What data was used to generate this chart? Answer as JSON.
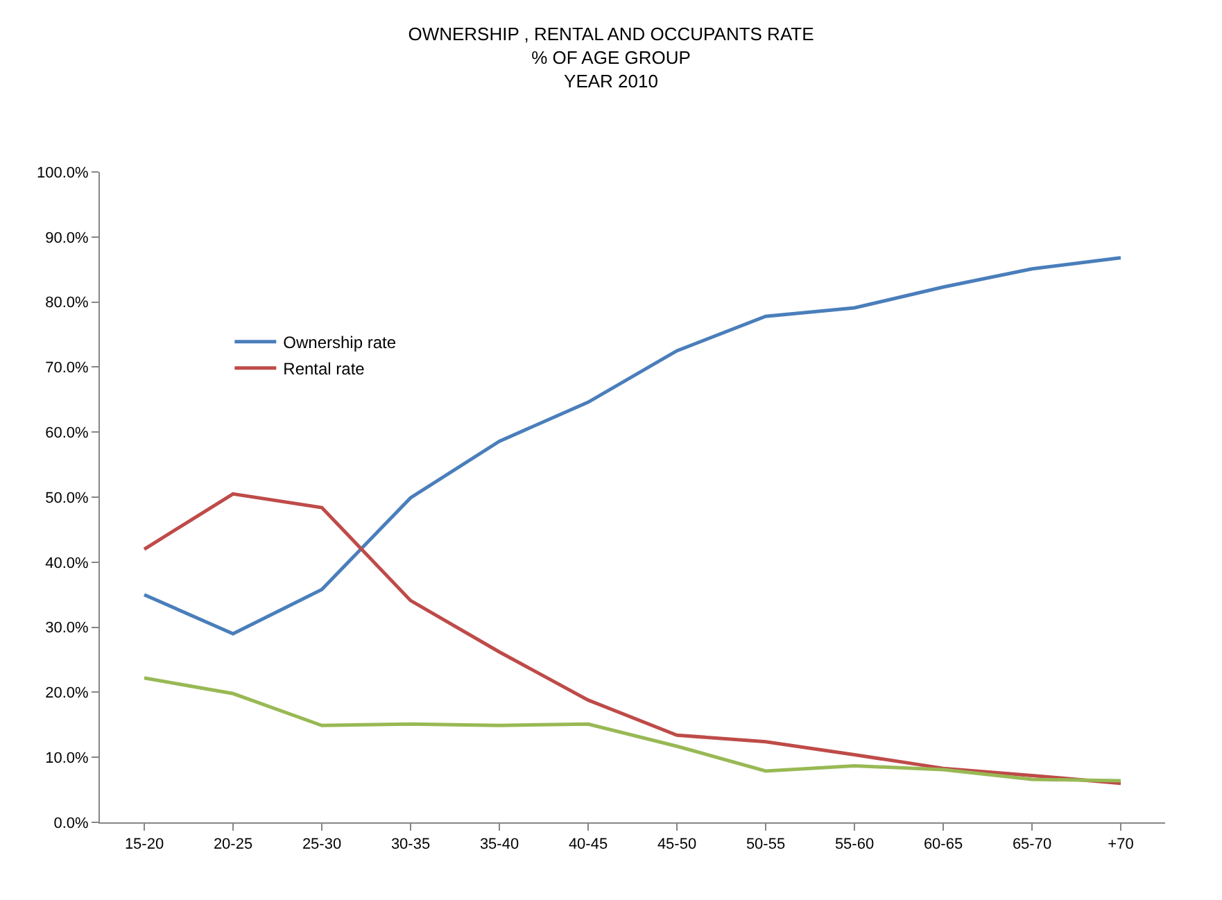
{
  "chart_data": {
    "type": "line",
    "title": "OWNERSHIP , RENTAL AND OCCUPANTS RATE\n% OF AGE GROUP\nYEAR 2010",
    "categories": [
      "15-20",
      "20-25",
      "25-30",
      "30-35",
      "35-40",
      "40-45",
      "45-50",
      "50-55",
      "55-60",
      "60-65",
      "65-70",
      "+70"
    ],
    "series": [
      {
        "name": "Ownership rate",
        "color": "#4a7ebb",
        "values": [
          35.0,
          29.0,
          35.8,
          49.9,
          58.6,
          64.6,
          72.5,
          77.8,
          79.1,
          82.3,
          85.1,
          86.8
        ]
      },
      {
        "name": "Rental rate",
        "color": "#be4b48",
        "values": [
          42.0,
          50.5,
          48.4,
          34.1,
          26.2,
          18.8,
          13.4,
          12.4,
          10.4,
          8.3,
          7.2,
          6.0
        ]
      },
      {
        "color": "#98b954",
        "values": [
          22.2,
          19.8,
          14.9,
          15.1,
          14.9,
          15.1,
          11.7,
          7.9,
          8.7,
          8.1,
          6.6,
          6.4
        ]
      }
    ],
    "ylim": [
      0,
      100
    ],
    "yticks": [
      {
        "value": 0,
        "label": "0.0%"
      },
      {
        "value": 10,
        "label": "10.0%"
      },
      {
        "value": 20,
        "label": "20.0%"
      },
      {
        "value": 30,
        "label": "30.0%"
      },
      {
        "value": 40,
        "label": "40.0%"
      },
      {
        "value": 50,
        "label": "50.0%"
      },
      {
        "value": 60,
        "label": "60.0%"
      },
      {
        "value": 70,
        "label": "70.0%"
      },
      {
        "value": 80,
        "label": "80.0%"
      },
      {
        "value": 90,
        "label": "90.0%"
      },
      {
        "value": 100,
        "label": "100.0%"
      }
    ],
    "grid": false,
    "legend": "top left",
    "marker": "none",
    "line_style": "solid"
  }
}
